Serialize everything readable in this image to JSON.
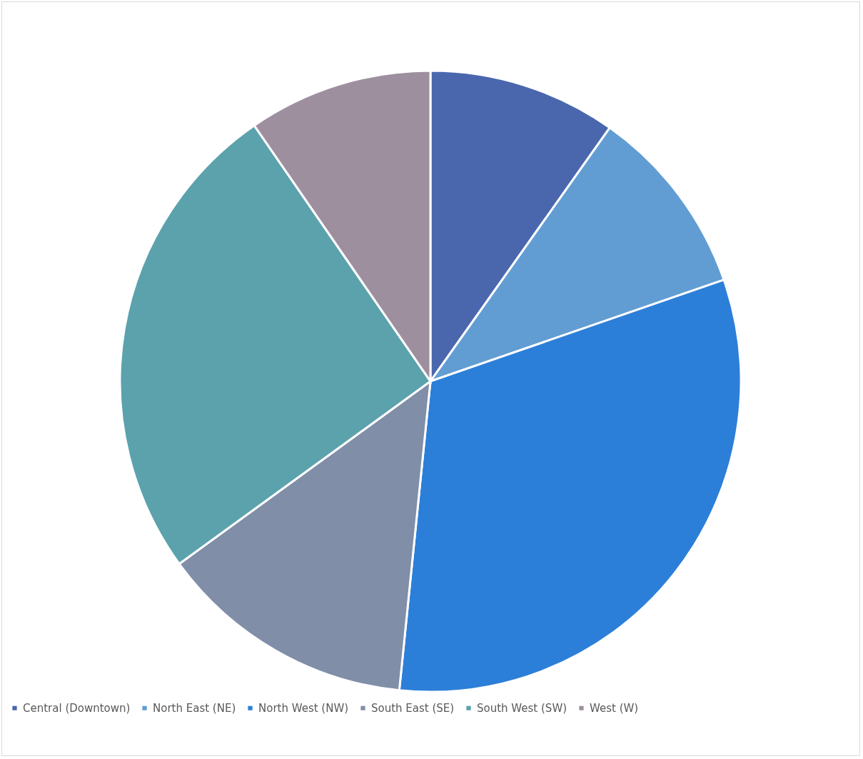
{
  "chart_data": {
    "type": "pie",
    "categories": [
      "Central (Downtown)",
      "North East (NE)",
      "North West (NW)",
      "South East (SE)",
      "South West (SW)",
      "West (W)"
    ],
    "values": [
      9.8,
      9.9,
      31.9,
      13.4,
      25.4,
      9.6
    ],
    "colors": [
      "#4a67ae",
      "#619dd2",
      "#2c7fd8",
      "#808ea8",
      "#5ba2ad",
      "#9e8f9f"
    ],
    "legend": "bottom"
  }
}
